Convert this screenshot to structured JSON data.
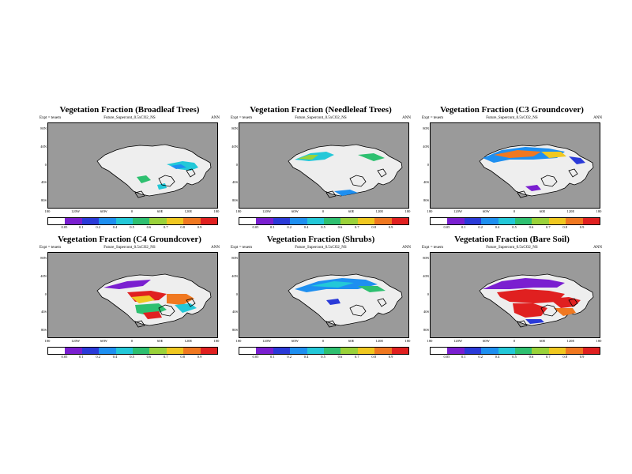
{
  "colorbar": {
    "colors": [
      "#ffffff",
      "#7a1fd0",
      "#2a3ad8",
      "#1e8ff0",
      "#23c8d8",
      "#2ec070",
      "#9ad23a",
      "#f0c820",
      "#f07820",
      "#e02020"
    ],
    "labels": [
      "0.05",
      "0.1",
      "0.2",
      "0.4",
      "0.5",
      "0.6",
      "0.7",
      "0.8",
      "0.9"
    ]
  },
  "axes": {
    "yticks": [
      "80N",
      "40N",
      "0",
      "40S",
      "80S"
    ],
    "xticks": [
      "180",
      "120W",
      "60W",
      "0",
      "60E",
      "120E",
      "180"
    ]
  },
  "colors": {
    "ocean": "#9a9a9a",
    "land": "#eeeeee",
    "coast": "#000000"
  },
  "panels": [
    {
      "title": "Vegetation Fraction (Broadleaf Trees)",
      "subtitle": "Future_Supercont_0.5xCO2_NS",
      "expt": "Expt = teuem",
      "period": "ANN",
      "pattern": "broadleaf"
    },
    {
      "title": "Vegetation Fraction (Needleleaf Trees)",
      "subtitle": "Future_Supercont_0.5xCO2_NS",
      "expt": "Expt = teuem",
      "period": "ANN",
      "pattern": "needleleaf"
    },
    {
      "title": "Vegetation Fraction (C3 Groundcover)",
      "subtitle": "Future_Supercont_0.5xCO2_NS",
      "expt": "Expt = teuem",
      "period": "ANN",
      "pattern": "c3"
    },
    {
      "title": "Vegetation Fraction (C4 Groundcover)",
      "subtitle": "Future_Supercont_0.5xCO2_NS",
      "expt": "Expt = teuem",
      "period": "ANN",
      "pattern": "c4"
    },
    {
      "title": "Vegetation Fraction (Shrubs)",
      "subtitle": "Future_Supercont_0.5xCO2_NS",
      "expt": "Expt = teuem",
      "period": "ANN",
      "pattern": "shrubs"
    },
    {
      "title": "Vegetation Fraction (Bare Soil)",
      "subtitle": "Future_Supercont_0.5xCO2_NS",
      "expt": "Expt = teuem",
      "period": "ANN",
      "pattern": "bare"
    }
  ]
}
